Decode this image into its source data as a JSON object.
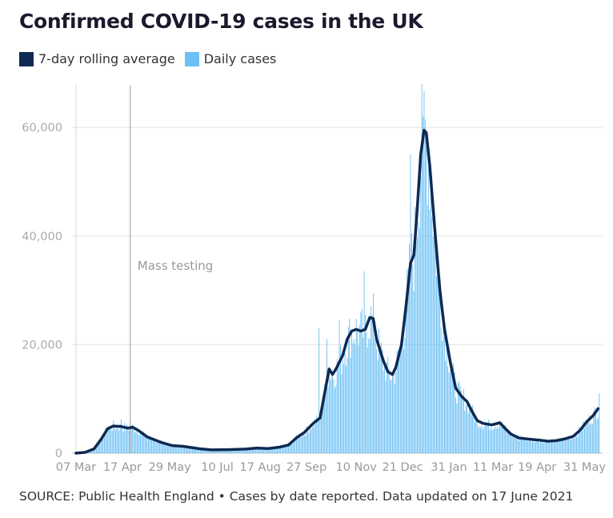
{
  "chart_data": {
    "type": "bar",
    "title": "Confirmed COVID-19 cases in the UK",
    "legend": [
      {
        "label": "7-day rolling average",
        "color": "#0e2a52"
      },
      {
        "label": "Daily cases",
        "color": "#6cc0f4"
      }
    ],
    "source": "SOURCE: Public Health England • Cases by date reported. Data updated on 17 June 2021",
    "x_range_days": [
      0,
      466
    ],
    "x_ticks": [
      {
        "label": "07 Mar",
        "day": 0
      },
      {
        "label": "17 Apr",
        "day": 41
      },
      {
        "label": "29 May",
        "day": 83
      },
      {
        "label": "10 Jul",
        "day": 125
      },
      {
        "label": "17 Aug",
        "day": 163
      },
      {
        "label": "27 Sep",
        "day": 204
      },
      {
        "label": "10 Nov",
        "day": 248
      },
      {
        "label": "21 Dec",
        "day": 289
      },
      {
        "label": "31 Jan",
        "day": 330
      },
      {
        "label": "11 Mar",
        "day": 369
      },
      {
        "label": "19 Apr",
        "day": 408
      },
      {
        "label": "31 May",
        "day": 450
      }
    ],
    "y_ticks": [
      {
        "label": "0",
        "value": 0
      },
      {
        "label": "20,000",
        "value": 20000
      },
      {
        "label": "40,000",
        "value": 40000
      },
      {
        "label": "60,000",
        "value": 60000
      }
    ],
    "ylim": [
      0,
      68000
    ],
    "annotation": {
      "label": "Mass testing",
      "day": 48
    },
    "rolling_avg_keypoints": [
      [
        0,
        0
      ],
      [
        8,
        150
      ],
      [
        16,
        800
      ],
      [
        22,
        2500
      ],
      [
        28,
        4500
      ],
      [
        33,
        5000
      ],
      [
        40,
        4900
      ],
      [
        46,
        4600
      ],
      [
        50,
        4800
      ],
      [
        55,
        4200
      ],
      [
        63,
        3000
      ],
      [
        75,
        2000
      ],
      [
        85,
        1400
      ],
      [
        95,
        1250
      ],
      [
        110,
        800
      ],
      [
        120,
        600
      ],
      [
        135,
        650
      ],
      [
        150,
        750
      ],
      [
        160,
        950
      ],
      [
        170,
        850
      ],
      [
        180,
        1100
      ],
      [
        188,
        1500
      ],
      [
        195,
        2800
      ],
      [
        202,
        3800
      ],
      [
        210,
        5500
      ],
      [
        216,
        6500
      ],
      [
        220,
        11000
      ],
      [
        224,
        15500
      ],
      [
        227,
        14500
      ],
      [
        230,
        15500
      ],
      [
        236,
        18000
      ],
      [
        240,
        21000
      ],
      [
        244,
        22500
      ],
      [
        248,
        22800
      ],
      [
        252,
        22500
      ],
      [
        256,
        22800
      ],
      [
        260,
        25000
      ],
      [
        263,
        24800
      ],
      [
        266,
        21000
      ],
      [
        272,
        17000
      ],
      [
        276,
        15000
      ],
      [
        280,
        14500
      ],
      [
        283,
        15800
      ],
      [
        288,
        20000
      ],
      [
        292,
        27000
      ],
      [
        296,
        35000
      ],
      [
        299,
        36500
      ],
      [
        302,
        45000
      ],
      [
        305,
        55000
      ],
      [
        308,
        59500
      ],
      [
        310,
        59000
      ],
      [
        313,
        53000
      ],
      [
        318,
        40000
      ],
      [
        322,
        30000
      ],
      [
        326,
        23000
      ],
      [
        331,
        17000
      ],
      [
        336,
        12000
      ],
      [
        341,
        10500
      ],
      [
        346,
        9500
      ],
      [
        351,
        7500
      ],
      [
        355,
        6000
      ],
      [
        360,
        5500
      ],
      [
        368,
        5200
      ],
      [
        375,
        5600
      ],
      [
        380,
        4500
      ],
      [
        385,
        3500
      ],
      [
        392,
        2800
      ],
      [
        400,
        2600
      ],
      [
        410,
        2400
      ],
      [
        418,
        2200
      ],
      [
        425,
        2300
      ],
      [
        432,
        2600
      ],
      [
        440,
        3100
      ],
      [
        446,
        4200
      ],
      [
        452,
        5800
      ],
      [
        458,
        7000
      ],
      [
        462,
        8200
      ]
    ],
    "daily_cases_peaks": [
      [
        40,
        6200
      ],
      [
        48,
        6100
      ],
      [
        215,
        23000
      ],
      [
        222,
        21000
      ],
      [
        233,
        24500
      ],
      [
        255,
        33500
      ],
      [
        296,
        55000
      ],
      [
        306,
        68000
      ],
      [
        307,
        62000
      ],
      [
        463,
        11000
      ]
    ]
  }
}
